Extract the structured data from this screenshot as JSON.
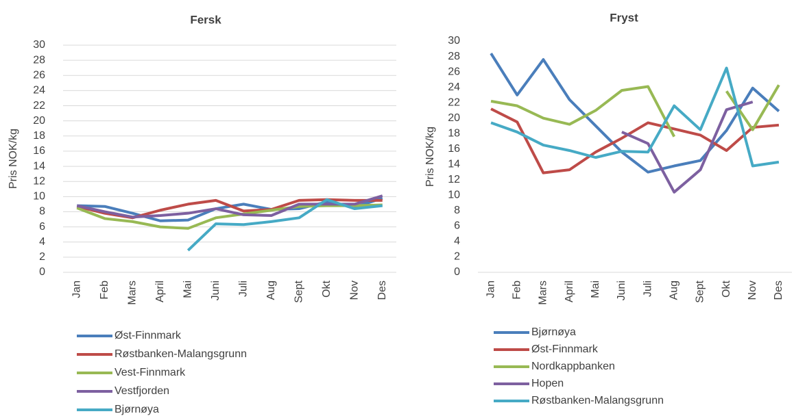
{
  "chart_data": [
    {
      "type": "line",
      "title": "Fersk",
      "y_label": "Pris NOK/kg",
      "categories": [
        "Jan",
        "Feb",
        "Mars",
        "April",
        "Mai",
        "Juni",
        "Juli",
        "Aug",
        "Sept",
        "Okt",
        "Nov",
        "Des"
      ],
      "ylim": [
        0,
        30
      ],
      "yticks": [
        0,
        2,
        4,
        6,
        8,
        10,
        12,
        14,
        16,
        18,
        20,
        22,
        24,
        26,
        28,
        30
      ],
      "grid": true,
      "series": [
        {
          "name": "Øst-Finnmark",
          "color": "#4a7ebb",
          "values": [
            8.8,
            8.7,
            7.8,
            6.8,
            6.9,
            8.4,
            9.0,
            8.3,
            8.4,
            9.3,
            8.6,
            9.8
          ]
        },
        {
          "name": "Røstbanken-Malangsgrunn",
          "color": "#be4b48",
          "values": [
            8.7,
            7.8,
            7.2,
            8.2,
            9.0,
            9.5,
            8.1,
            8.3,
            9.5,
            9.6,
            9.5,
            9.5
          ]
        },
        {
          "name": "Vest-Finnmark",
          "color": "#98b954",
          "values": [
            8.5,
            7.1,
            6.7,
            6.0,
            5.8,
            7.2,
            7.7,
            8.2,
            8.7,
            8.8,
            8.8,
            8.9
          ]
        },
        {
          "name": "Vestfjorden",
          "color": "#7d60a0",
          "values": [
            8.8,
            8.0,
            7.3,
            7.5,
            7.8,
            8.4,
            7.6,
            7.5,
            9.0,
            9.0,
            9.0,
            10.1
          ]
        },
        {
          "name": "Bjørnøya",
          "color": "#46aac5",
          "values": [
            null,
            null,
            null,
            null,
            2.9,
            6.4,
            6.3,
            6.7,
            7.2,
            9.6,
            8.4,
            8.8
          ]
        }
      ]
    },
    {
      "type": "line",
      "title": "Fryst",
      "y_label": "Pris NOK/kg",
      "categories": [
        "Jan",
        "Feb",
        "Mars",
        "April",
        "Mai",
        "Juni",
        "Juli",
        "Aug",
        "Sept",
        "Okt",
        "Nov",
        "Des"
      ],
      "ylim": [
        0,
        30
      ],
      "yticks": [
        0,
        2,
        4,
        6,
        8,
        10,
        12,
        14,
        16,
        18,
        20,
        22,
        24,
        26,
        28,
        30
      ],
      "grid": false,
      "series": [
        {
          "name": "Bjørnøya",
          "color": "#4a7ebb",
          "values": [
            28.4,
            23.0,
            27.6,
            22.4,
            19.0,
            15.6,
            13.0,
            13.8,
            14.5,
            18.4,
            23.9,
            20.9
          ]
        },
        {
          "name": "Øst-Finnmark",
          "color": "#be4b48",
          "values": [
            21.2,
            19.5,
            12.9,
            13.3,
            15.6,
            17.4,
            19.4,
            18.6,
            17.8,
            15.8,
            18.8,
            19.1
          ]
        },
        {
          "name": "Nordkappbanken",
          "color": "#98b954",
          "values": [
            22.2,
            21.6,
            20.0,
            19.2,
            21.0,
            23.6,
            24.1,
            17.6,
            null,
            23.5,
            18.5,
            24.3
          ]
        },
        {
          "name": "Hopen",
          "color": "#7d60a0",
          "values": [
            null,
            null,
            null,
            null,
            null,
            18.2,
            16.7,
            10.4,
            13.3,
            21.1,
            22.1,
            null
          ]
        },
        {
          "name": "Røstbanken-Malangsgrunn",
          "color": "#46aac5",
          "values": [
            19.4,
            18.2,
            16.5,
            15.8,
            14.9,
            15.7,
            15.6,
            21.6,
            18.5,
            26.5,
            13.8,
            14.3
          ]
        }
      ]
    }
  ]
}
